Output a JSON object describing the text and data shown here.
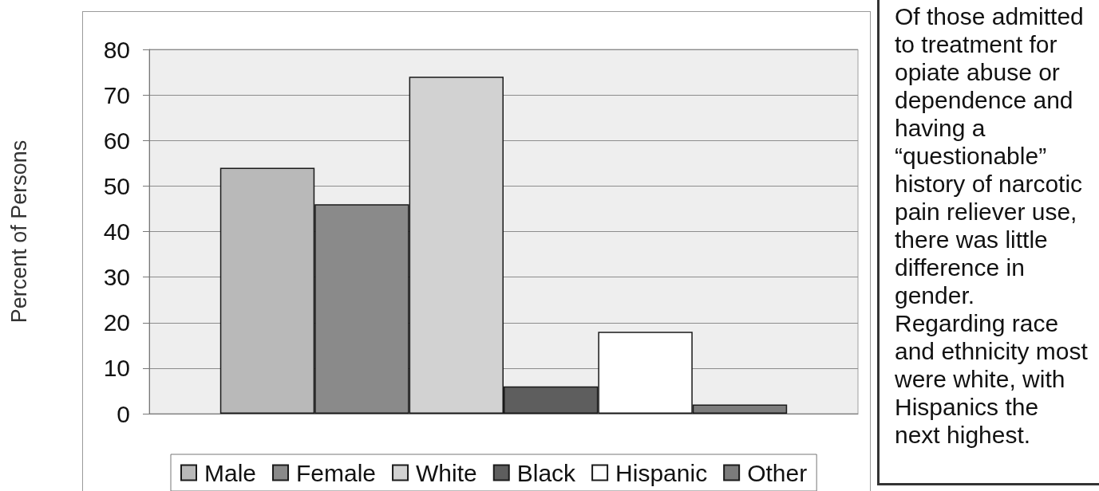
{
  "chart_data": {
    "type": "bar",
    "ylabel": "Percent of Persons",
    "categories": [
      null
    ],
    "series": [
      {
        "name": "Male",
        "color": "#b9b9b9",
        "values": [
          54
        ]
      },
      {
        "name": "Female",
        "color": "#8a8a8a",
        "values": [
          46
        ]
      },
      {
        "name": "White",
        "color": "#d2d2d2",
        "values": [
          74
        ]
      },
      {
        "name": "Black",
        "color": "#5e5e5e",
        "values": [
          6
        ]
      },
      {
        "name": "Hispanic",
        "color": "#ffffff",
        "values": [
          18
        ]
      },
      {
        "name": "Other",
        "color": "#7c7c7c",
        "values": [
          2
        ]
      }
    ],
    "ylim": [
      0,
      80
    ],
    "yticks": [
      0,
      10,
      20,
      30,
      40,
      50,
      60,
      70,
      80
    ],
    "grid": "y",
    "legend": "bottom",
    "annotations": [
      "Of those admitted\nto treatment for\nopiate abuse or\ndependence and\nhaving a\n“questionable”\nhistory of narcotic\npain reliever use,\nthere was little\ndifference in\ngender.\nRegarding race\nand ethnicity most\nwere white, with\nHispanics the\nnext highest."
    ]
  }
}
